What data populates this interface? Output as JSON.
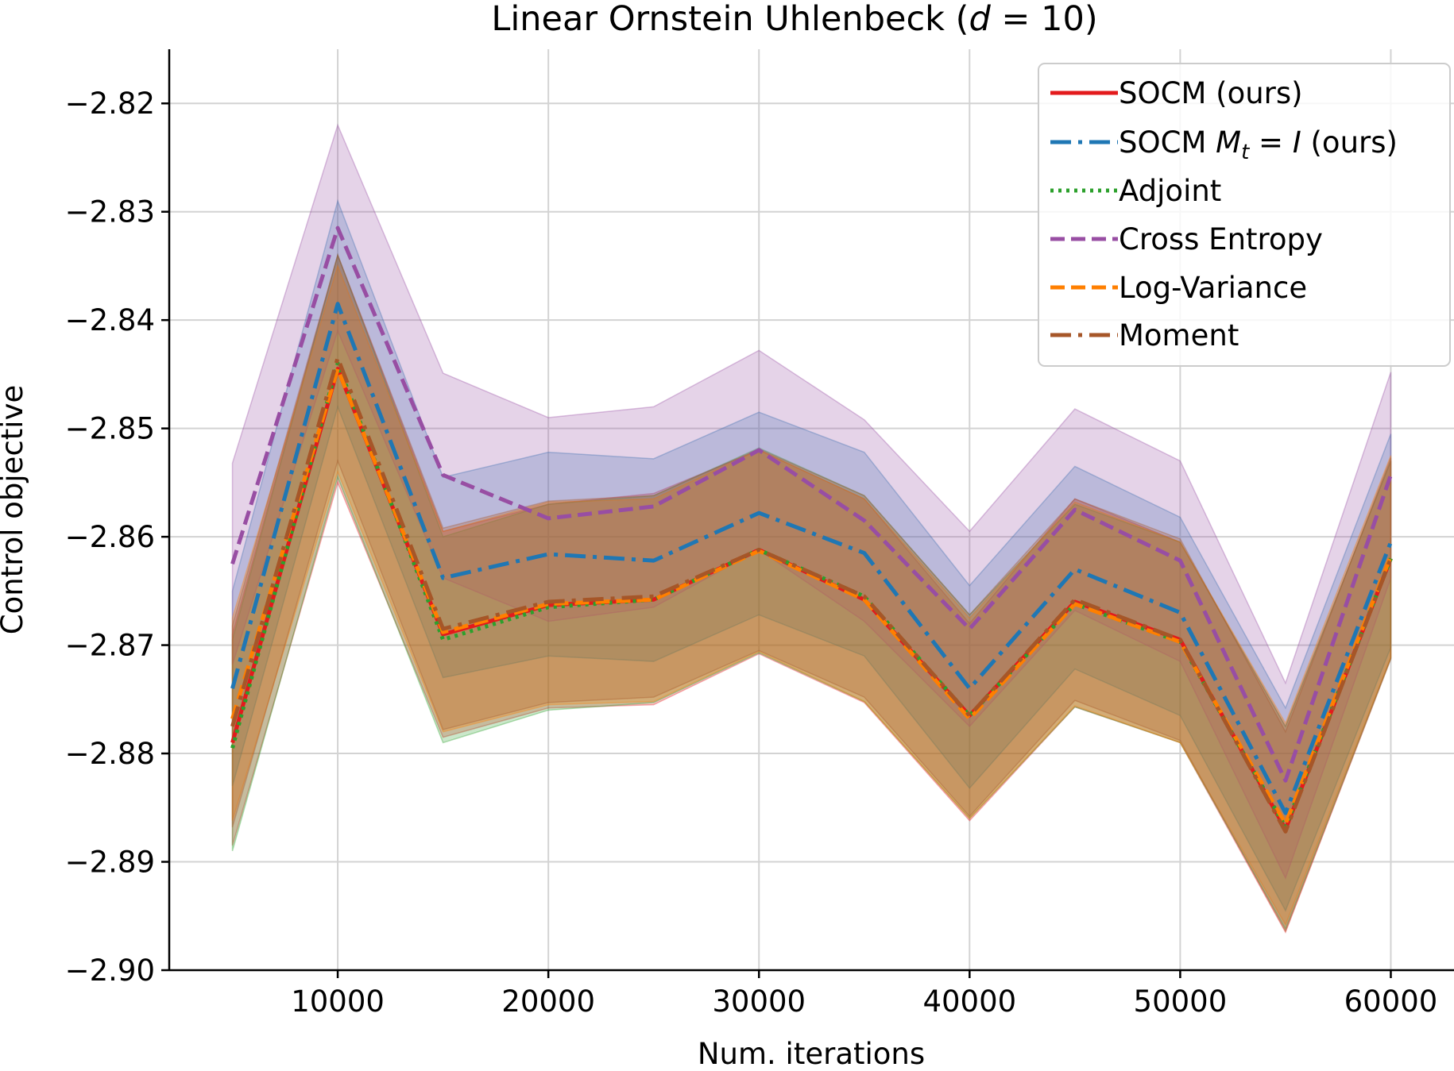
{
  "chart_data": {
    "type": "line",
    "title_parts": [
      "Linear Ornstein Uhlenbeck (",
      "d",
      " = 10)"
    ],
    "xlabel": "Num. iterations",
    "ylabel": "Control objective",
    "xlim": [
      2000,
      63000
    ],
    "ylim": [
      -2.9,
      -2.815
    ],
    "xticks": [
      10000,
      20000,
      30000,
      40000,
      50000,
      60000
    ],
    "yticks": [
      -2.82,
      -2.83,
      -2.84,
      -2.85,
      -2.86,
      -2.87,
      -2.88,
      -2.89,
      -2.9
    ],
    "ytick_labels": [
      "−2.82",
      "−2.83",
      "−2.84",
      "−2.85",
      "−2.86",
      "−2.87",
      "−2.88",
      "−2.89",
      "−2.90"
    ],
    "grid": true,
    "legend_position": "top-right",
    "x": [
      5000,
      10000,
      15000,
      20000,
      25000,
      30000,
      35000,
      40000,
      45000,
      50000,
      55000,
      60000
    ],
    "series": [
      {
        "name": "SOCM (ours)",
        "color": "#e31a1c",
        "dash": "solid",
        "values": [
          -2.879,
          -2.8445,
          -2.869,
          -2.8663,
          -2.8658,
          -2.8612,
          -2.8658,
          -2.8765,
          -2.866,
          -2.8695,
          -2.887,
          -2.862
        ],
        "upper": [
          -2.869,
          -2.834,
          -2.8595,
          -2.857,
          -2.856,
          -2.852,
          -2.8565,
          -2.868,
          -2.8565,
          -2.8605,
          -2.8775,
          -2.853
        ],
        "lower": [
          -2.8885,
          -2.855,
          -2.8785,
          -2.8758,
          -2.8755,
          -2.8708,
          -2.8753,
          -2.8862,
          -2.8757,
          -2.879,
          -2.8965,
          -2.8712
        ]
      },
      {
        "name": "SOCM M_t = I (ours)",
        "color": "#1f77b4",
        "dash": "dashdot",
        "values": [
          -2.874,
          -2.8385,
          -2.8638,
          -2.8616,
          -2.8622,
          -2.8578,
          -2.8615,
          -2.874,
          -2.863,
          -2.867,
          -2.8855,
          -2.8605
        ],
        "upper": [
          -2.865,
          -2.829,
          -2.8545,
          -2.8522,
          -2.8528,
          -2.8485,
          -2.8522,
          -2.8645,
          -2.8535,
          -2.8582,
          -2.8758,
          -2.8505
        ],
        "lower": [
          -2.883,
          -2.848,
          -2.873,
          -2.871,
          -2.8715,
          -2.8672,
          -2.871,
          -2.8832,
          -2.8722,
          -2.8765,
          -2.8945,
          -2.8702
        ]
      },
      {
        "name": "Adjoint",
        "color": "#2ca02c",
        "dash": "dotted",
        "values": [
          -2.8795,
          -2.844,
          -2.8695,
          -2.8665,
          -2.8658,
          -2.8612,
          -2.8655,
          -2.8765,
          -2.8662,
          -2.8697,
          -2.8868,
          -2.862
        ],
        "upper": [
          -2.8695,
          -2.834,
          -2.86,
          -2.857,
          -2.8562,
          -2.8518,
          -2.8562,
          -2.8672,
          -2.857,
          -2.8605,
          -2.8775,
          -2.853
        ],
        "lower": [
          -2.889,
          -2.8545,
          -2.879,
          -2.876,
          -2.8753,
          -2.8707,
          -2.8752,
          -2.886,
          -2.8757,
          -2.879,
          -2.8962,
          -2.8712
        ]
      },
      {
        "name": "Cross Entropy",
        "color": "#984ea3",
        "dash": "dashed",
        "values": [
          -2.8625,
          -2.8315,
          -2.8543,
          -2.8583,
          -2.8572,
          -2.852,
          -2.8585,
          -2.8685,
          -2.8575,
          -2.8622,
          -2.8825,
          -2.8543
        ],
        "upper": [
          -2.8532,
          -2.822,
          -2.8449,
          -2.849,
          -2.848,
          -2.8428,
          -2.8492,
          -2.8595,
          -2.8482,
          -2.853,
          -2.8735,
          -2.8448
        ],
        "lower": [
          -2.8718,
          -2.841,
          -2.8638,
          -2.8678,
          -2.8665,
          -2.8612,
          -2.8678,
          -2.8775,
          -2.8668,
          -2.8715,
          -2.8915,
          -2.8638
        ]
      },
      {
        "name": "Log-Variance",
        "color": "#ff7f00",
        "dash": "dashed",
        "values": [
          -2.8768,
          -2.8445,
          -2.8688,
          -2.8662,
          -2.8658,
          -2.8613,
          -2.8658,
          -2.8768,
          -2.8662,
          -2.8697,
          -2.8865,
          -2.8618
        ],
        "upper": [
          -2.8675,
          -2.835,
          -2.8595,
          -2.8568,
          -2.8565,
          -2.852,
          -2.8565,
          -2.8675,
          -2.8568,
          -2.8605,
          -2.8772,
          -2.8525
        ],
        "lower": [
          -2.8862,
          -2.854,
          -2.878,
          -2.8755,
          -2.8752,
          -2.8706,
          -2.8752,
          -2.886,
          -2.8756,
          -2.879,
          -2.8958,
          -2.8711
        ]
      },
      {
        "name": "Moment",
        "color": "#a65628",
        "dash": "dashdot",
        "values": [
          -2.8775,
          -2.8435,
          -2.8685,
          -2.866,
          -2.8655,
          -2.8612,
          -2.8655,
          -2.8765,
          -2.8658,
          -2.8695,
          -2.8872,
          -2.862
        ],
        "upper": [
          -2.8682,
          -2.834,
          -2.8592,
          -2.8567,
          -2.8562,
          -2.8519,
          -2.8562,
          -2.8672,
          -2.8565,
          -2.8602,
          -2.878,
          -2.8527
        ],
        "lower": [
          -2.8868,
          -2.853,
          -2.8778,
          -2.8753,
          -2.8748,
          -2.8705,
          -2.8748,
          -2.8858,
          -2.8751,
          -2.8788,
          -2.8964,
          -2.8713
        ]
      }
    ]
  },
  "legend_labels": {
    "socm": "SOCM (ours)",
    "socm_mt_prefix": "SOCM ",
    "socm_mt_var": "M",
    "socm_mt_sub": "t",
    "socm_mt_eq": " = ",
    "socm_mt_rhs": "I",
    "socm_mt_suffix": " (ours)",
    "adjoint": "Adjoint",
    "cross_entropy": "Cross Entropy",
    "log_variance": "Log-Variance",
    "moment": "Moment"
  }
}
